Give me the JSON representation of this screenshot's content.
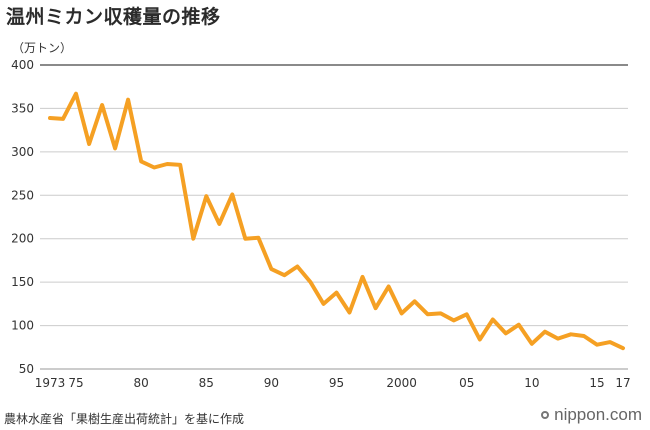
{
  "title": "温州ミカン収穫量の推移",
  "source": "農林水産省「果樹生産出荷統計」を基に作成",
  "brand": "nippon.com",
  "colors": {
    "line": "#F5A023",
    "grid": "#cccccc",
    "axis": "#555555"
  },
  "chart_data": {
    "type": "line",
    "title": "温州ミカン収穫量の推移",
    "ylabel": "（万トン）",
    "xlabel": "",
    "ylim": [
      50,
      400
    ],
    "xlim": [
      1973,
      2017
    ],
    "yticks": [
      "400",
      "350",
      "300",
      "250",
      "200",
      "150",
      "100",
      "50"
    ],
    "xticks": [
      {
        "year": 1973,
        "label": "1973"
      },
      {
        "year": 1975,
        "label": "75"
      },
      {
        "year": 1980,
        "label": "80"
      },
      {
        "year": 1985,
        "label": "85"
      },
      {
        "year": 1990,
        "label": "90"
      },
      {
        "year": 1995,
        "label": "95"
      },
      {
        "year": 2000,
        "label": "2000"
      },
      {
        "year": 2005,
        "label": "05"
      },
      {
        "year": 2010,
        "label": "10"
      },
      {
        "year": 2015,
        "label": "15"
      },
      {
        "year": 2017,
        "label": "17"
      }
    ],
    "grid": true,
    "series": [
      {
        "x": [
          1973,
          1974,
          1975,
          1976,
          1977,
          1978,
          1979,
          1980,
          1981,
          1982,
          1983,
          1984,
          1985,
          1986,
          1987,
          1988,
          1989,
          1990,
          1991,
          1992,
          1993,
          1994,
          1995,
          1996,
          1997,
          1998,
          1999,
          2000,
          2001,
          2002,
          2003,
          2004,
          2005,
          2006,
          2007,
          2008,
          2009,
          2010,
          2011,
          2012,
          2013,
          2014,
          2015,
          2016,
          2017
        ],
        "values": [
          339,
          338,
          367,
          309,
          354,
          304,
          360,
          289,
          282,
          286,
          285,
          200,
          249,
          217,
          251,
          200,
          201,
          165,
          158,
          168,
          150,
          125,
          138,
          115,
          156,
          120,
          145,
          114,
          128,
          113,
          114,
          106,
          113,
          84,
          107,
          91,
          101,
          79,
          93,
          85,
          90,
          88,
          78,
          81,
          74
        ]
      }
    ]
  }
}
